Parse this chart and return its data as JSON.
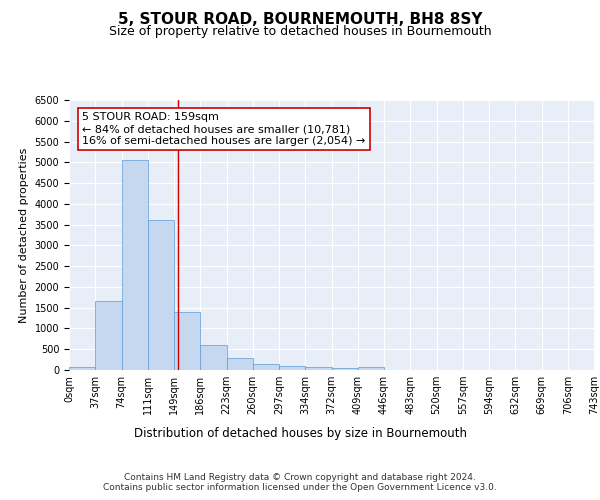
{
  "title": "5, STOUR ROAD, BOURNEMOUTH, BH8 8SY",
  "subtitle": "Size of property relative to detached houses in Bournemouth",
  "xlabel": "Distribution of detached houses by size in Bournemouth",
  "ylabel": "Number of detached properties",
  "bar_values": [
    75,
    1650,
    5050,
    3600,
    1400,
    600,
    300,
    150,
    90,
    65,
    45,
    70,
    0,
    0,
    0,
    0,
    0,
    0,
    0,
    0
  ],
  "bin_labels": [
    "0sqm",
    "37sqm",
    "74sqm",
    "111sqm",
    "149sqm",
    "186sqm",
    "223sqm",
    "260sqm",
    "297sqm",
    "334sqm",
    "372sqm",
    "409sqm",
    "446sqm",
    "483sqm",
    "520sqm",
    "557sqm",
    "594sqm",
    "632sqm",
    "669sqm",
    "706sqm",
    "743sqm"
  ],
  "bar_color": "#c5d8f0",
  "bar_edge_color": "#5b9bd5",
  "background_color": "#e8eef8",
  "grid_color": "#ffffff",
  "vline_x": 4.15,
  "vline_color": "#cc0000",
  "annotation_text": "5 STOUR ROAD: 159sqm\n← 84% of detached houses are smaller (10,781)\n16% of semi-detached houses are larger (2,054) →",
  "annotation_box_color": "#ffffff",
  "annotation_box_edge": "#cc0000",
  "ylim": [
    0,
    6500
  ],
  "yticks": [
    0,
    500,
    1000,
    1500,
    2000,
    2500,
    3000,
    3500,
    4000,
    4500,
    5000,
    5500,
    6000,
    6500
  ],
  "footer_text": "Contains HM Land Registry data © Crown copyright and database right 2024.\nContains public sector information licensed under the Open Government Licence v3.0.",
  "title_fontsize": 11,
  "subtitle_fontsize": 9,
  "xlabel_fontsize": 8.5,
  "ylabel_fontsize": 8,
  "tick_fontsize": 7,
  "footer_fontsize": 6.5,
  "annotation_fontsize": 8
}
